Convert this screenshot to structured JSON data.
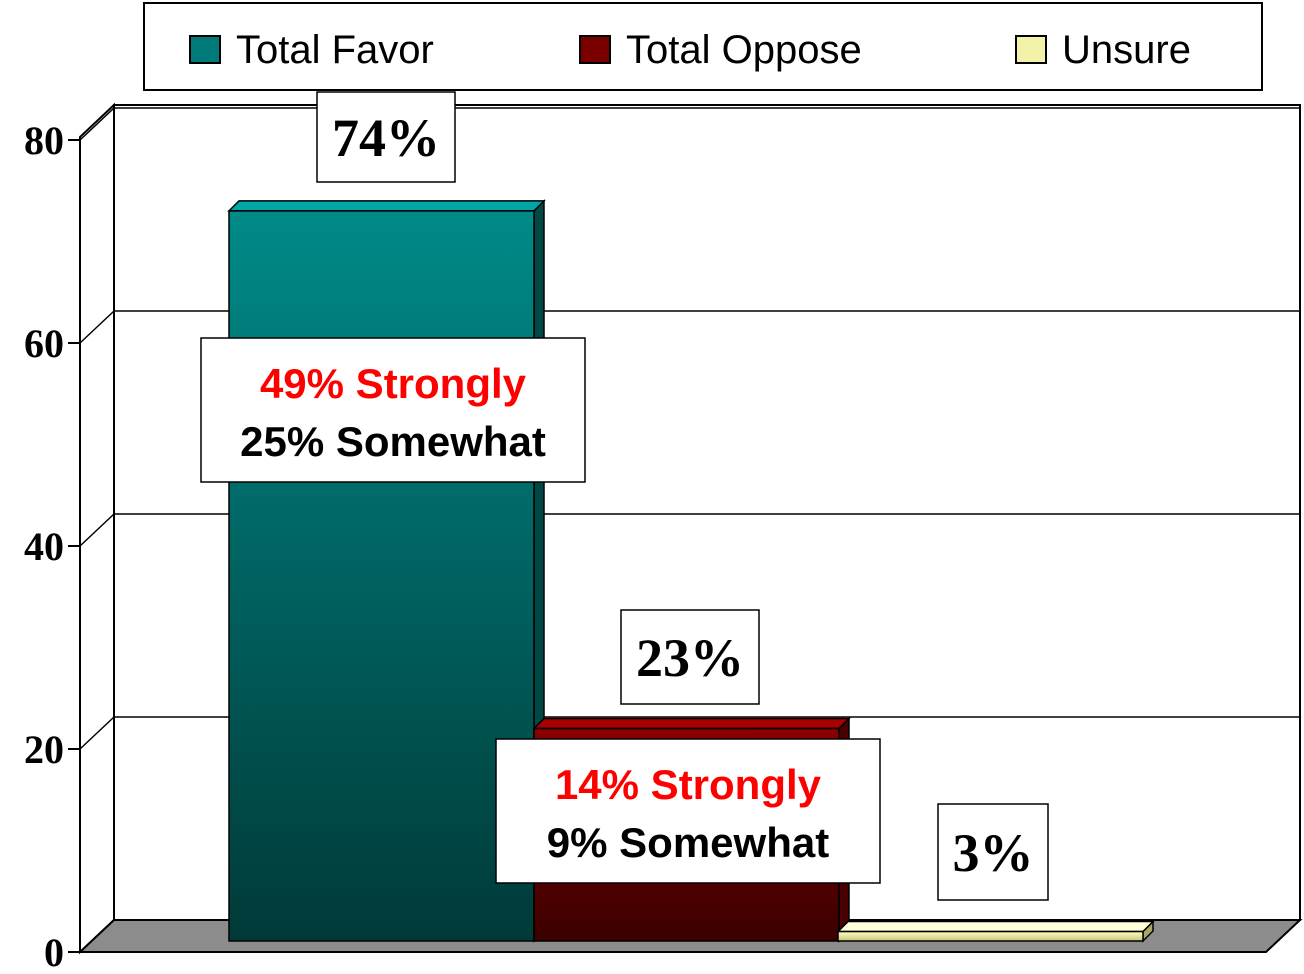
{
  "chart_data": {
    "type": "bar",
    "categories": [
      "Total Favor",
      "Total Oppose",
      "Unsure"
    ],
    "values": [
      74,
      23,
      3
    ],
    "value_labels": [
      "74%",
      "23%",
      "3%"
    ],
    "legend": [
      "Total Favor",
      "Total Oppose",
      "Unsure"
    ],
    "legend_position": "top",
    "ylim": [
      0,
      80
    ],
    "yticks": [
      0,
      20,
      40,
      60,
      80
    ],
    "ytick_labels": [
      "0",
      "20",
      "40",
      "60",
      "80"
    ],
    "grid": true,
    "three_d": true,
    "colors": [
      "#007a78",
      "#7a0000",
      "#f2f2a8"
    ],
    "breakdowns": [
      {
        "strong": "49% Strongly",
        "somewhat": "25% Somewhat"
      },
      {
        "strong": "14% Strongly",
        "somewhat": "9% Somewhat"
      },
      null
    ],
    "strong_color": "#ff0000"
  }
}
